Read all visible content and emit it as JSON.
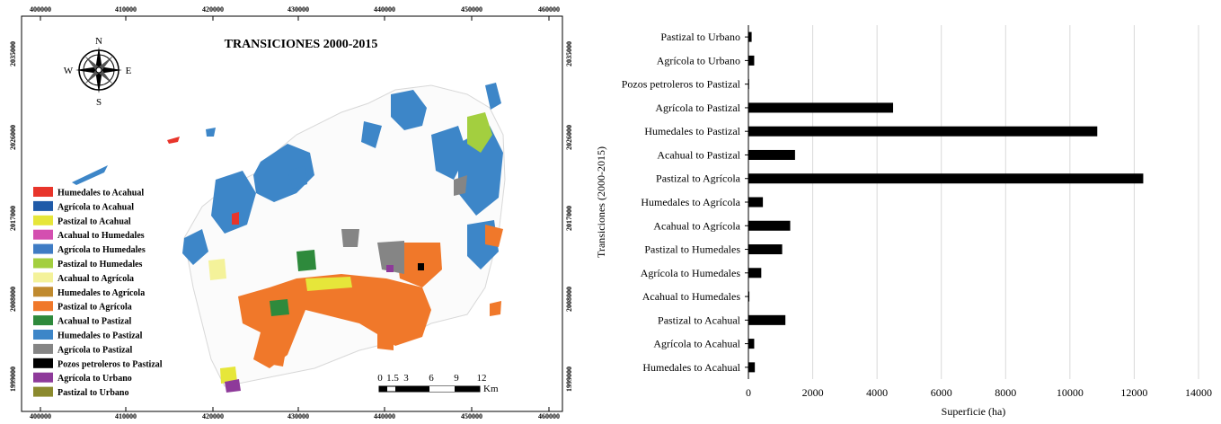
{
  "map": {
    "title": "TRANSICIONES 2000-2015",
    "compass": {
      "n": "N",
      "s": "S",
      "e": "E",
      "w": "W"
    },
    "x_ticks": [
      "400000",
      "410000",
      "420000",
      "430000",
      "440000",
      "450000",
      "460000"
    ],
    "y_ticks": [
      "2035000",
      "2026000",
      "2017000",
      "2008000",
      "1999000"
    ],
    "scale_labels": [
      "0",
      "1.5",
      "3",
      "6",
      "9",
      "12"
    ],
    "scale_unit": "Km",
    "legend": [
      {
        "label": "Humedales to Acahual",
        "color": "#e8352b"
      },
      {
        "label": "Agrícola to Acahual",
        "color": "#1f5aa8"
      },
      {
        "label": "Pastizal to Acahual",
        "color": "#e6e63a"
      },
      {
        "label": "Acahual to Humedales",
        "color": "#d44fb0"
      },
      {
        "label": "Agrícola to Humedales",
        "color": "#3f7cc4"
      },
      {
        "label": "Pastizal to Humedales",
        "color": "#a3cf3f"
      },
      {
        "label": "Acahual to Agrícola",
        "color": "#f4f29a"
      },
      {
        "label": "Humedales to Agrícola",
        "color": "#c08a2e"
      },
      {
        "label": "Pastizal to Agrícola",
        "color": "#f0782a"
      },
      {
        "label": "Acahual to Pastizal",
        "color": "#2e8a3c"
      },
      {
        "label": "Humedales to Pastizal",
        "color": "#3d86c8"
      },
      {
        "label": "Agrícola to Pastizal",
        "color": "#858585"
      },
      {
        "label": "Pozos petroleros to Pastizal",
        "color": "#000000"
      },
      {
        "label": "Agrícola to Urbano",
        "color": "#8e3a9a"
      },
      {
        "label": "Pastizal to Urbano",
        "color": "#8b8a2e"
      }
    ]
  },
  "chart_data": {
    "type": "bar",
    "orientation": "horizontal",
    "categories": [
      "Pastizal to Urbano",
      "Agrícola to Urbano",
      "Pozos petroleros to Pastizal",
      "Agrícola to Pastizal",
      "Humedales to Pastizal",
      "Acahual to Pastizal",
      "Pastizal to Agrícola",
      "Humedales to Agrícola",
      "Acahual to Agrícola",
      "Pastizal to Humedales",
      "Agrícola to Humedales",
      "Acahual to Humedales",
      "Pastizal to Acahual",
      "Agrícola to Acahual",
      "Humedales to Acahual"
    ],
    "values": [
      100,
      180,
      20,
      4500,
      10850,
      1450,
      12280,
      450,
      1300,
      1050,
      400,
      30,
      1150,
      180,
      200
    ],
    "xlabel": "Superficie   (ha)",
    "ylabel": "Transiciones   (2000-2015)",
    "xlim": [
      0,
      14000
    ],
    "xticks": [
      0,
      2000,
      4000,
      6000,
      8000,
      10000,
      12000,
      14000
    ],
    "bar_color": "#000000",
    "grid": "vertical"
  }
}
